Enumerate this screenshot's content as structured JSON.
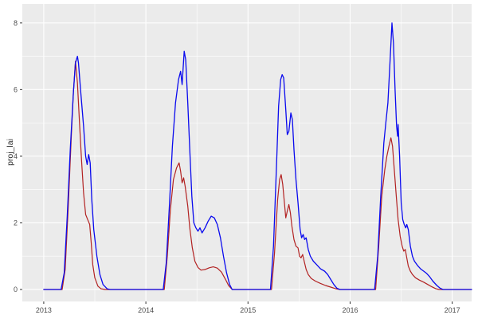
{
  "chart_data": {
    "type": "line",
    "title": "",
    "xlabel": "",
    "ylabel": "proj_lai",
    "legend": "none",
    "grid": true,
    "panel_bg": "#EBEBEB",
    "grid_color": "#FFFFFF",
    "tick_color": "#333333",
    "tick_label_color": "#4D4D4D",
    "xlim": [
      2012.79,
      2017.19
    ],
    "ylim": [
      -0.36,
      8.57
    ],
    "x_ticks": [
      2013,
      2014,
      2015,
      2016,
      2017
    ],
    "x_tick_labels": [
      "2013",
      "2014",
      "2015",
      "2016",
      "2017"
    ],
    "x_minor": [
      2013.5,
      2014.5,
      2015.5,
      2016.5
    ],
    "y_ticks": [
      0,
      2,
      4,
      6,
      8
    ],
    "y_tick_labels": [
      "0",
      "2",
      "4",
      "6",
      "8"
    ],
    "y_minor": [
      1,
      3,
      5,
      7
    ],
    "series": [
      {
        "name": "red-series",
        "color": "#B22222",
        "width": 1.2,
        "points": [
          [
            2013.0,
            0
          ],
          [
            2013.18,
            0
          ],
          [
            2013.21,
            0.6
          ],
          [
            2013.24,
            2.5
          ],
          [
            2013.27,
            4.6
          ],
          [
            2013.29,
            5.9
          ],
          [
            2013.31,
            6.85
          ],
          [
            2013.33,
            6.2
          ],
          [
            2013.35,
            5.0
          ],
          [
            2013.37,
            3.9
          ],
          [
            2013.39,
            2.9
          ],
          [
            2013.41,
            2.25
          ],
          [
            2013.43,
            2.1
          ],
          [
            2013.45,
            1.95
          ],
          [
            2013.465,
            1.4
          ],
          [
            2013.48,
            0.75
          ],
          [
            2013.5,
            0.35
          ],
          [
            2013.53,
            0.1
          ],
          [
            2013.56,
            0.02
          ],
          [
            2013.6,
            0
          ],
          [
            2014.18,
            0
          ],
          [
            2014.21,
            1.0
          ],
          [
            2014.24,
            2.4
          ],
          [
            2014.27,
            3.3
          ],
          [
            2014.3,
            3.65
          ],
          [
            2014.325,
            3.8
          ],
          [
            2014.34,
            3.55
          ],
          [
            2014.355,
            3.2
          ],
          [
            2014.37,
            3.35
          ],
          [
            2014.385,
            3.1
          ],
          [
            2014.41,
            2.5
          ],
          [
            2014.43,
            1.85
          ],
          [
            2014.455,
            1.25
          ],
          [
            2014.48,
            0.85
          ],
          [
            2014.51,
            0.66
          ],
          [
            2014.54,
            0.58
          ],
          [
            2014.58,
            0.6
          ],
          [
            2014.62,
            0.65
          ],
          [
            2014.66,
            0.68
          ],
          [
            2014.7,
            0.64
          ],
          [
            2014.74,
            0.52
          ],
          [
            2014.78,
            0.3
          ],
          [
            2014.81,
            0.12
          ],
          [
            2014.845,
            0
          ],
          [
            2015.23,
            0
          ],
          [
            2015.26,
            1.1
          ],
          [
            2015.29,
            2.7
          ],
          [
            2015.31,
            3.3
          ],
          [
            2015.325,
            3.45
          ],
          [
            2015.34,
            3.15
          ],
          [
            2015.36,
            2.5
          ],
          [
            2015.37,
            2.15
          ],
          [
            2015.385,
            2.35
          ],
          [
            2015.4,
            2.55
          ],
          [
            2015.415,
            2.3
          ],
          [
            2015.43,
            1.9
          ],
          [
            2015.45,
            1.5
          ],
          [
            2015.47,
            1.3
          ],
          [
            2015.49,
            1.25
          ],
          [
            2015.505,
            1.0
          ],
          [
            2015.52,
            0.95
          ],
          [
            2015.535,
            1.05
          ],
          [
            2015.55,
            0.85
          ],
          [
            2015.57,
            0.6
          ],
          [
            2015.59,
            0.45
          ],
          [
            2015.62,
            0.33
          ],
          [
            2015.66,
            0.25
          ],
          [
            2015.71,
            0.18
          ],
          [
            2015.76,
            0.12
          ],
          [
            2015.81,
            0.07
          ],
          [
            2015.86,
            0.02
          ],
          [
            2015.9,
            0
          ],
          [
            2016.25,
            0
          ],
          [
            2016.28,
            1.3
          ],
          [
            2016.31,
            2.8
          ],
          [
            2016.34,
            3.6
          ],
          [
            2016.36,
            4.0
          ],
          [
            2016.38,
            4.3
          ],
          [
            2016.4,
            4.55
          ],
          [
            2016.415,
            4.3
          ],
          [
            2016.43,
            3.7
          ],
          [
            2016.45,
            2.9
          ],
          [
            2016.47,
            2.1
          ],
          [
            2016.49,
            1.6
          ],
          [
            2016.51,
            1.3
          ],
          [
            2016.525,
            1.15
          ],
          [
            2016.54,
            1.2
          ],
          [
            2016.555,
            0.95
          ],
          [
            2016.57,
            0.7
          ],
          [
            2016.59,
            0.55
          ],
          [
            2016.61,
            0.45
          ],
          [
            2016.64,
            0.35
          ],
          [
            2016.68,
            0.28
          ],
          [
            2016.72,
            0.22
          ],
          [
            2016.76,
            0.15
          ],
          [
            2016.8,
            0.08
          ],
          [
            2016.84,
            0.02
          ],
          [
            2016.87,
            0
          ],
          [
            2017.19,
            0
          ]
        ]
      },
      {
        "name": "blue-series",
        "color": "#0A0AEE",
        "width": 1.3,
        "points": [
          [
            2013.0,
            0
          ],
          [
            2013.17,
            0
          ],
          [
            2013.2,
            0.5
          ],
          [
            2013.23,
            2.2
          ],
          [
            2013.26,
            4.2
          ],
          [
            2013.29,
            5.9
          ],
          [
            2013.31,
            6.8
          ],
          [
            2013.33,
            7.0
          ],
          [
            2013.34,
            6.8
          ],
          [
            2013.36,
            6.0
          ],
          [
            2013.39,
            4.9
          ],
          [
            2013.41,
            4.0
          ],
          [
            2013.425,
            3.75
          ],
          [
            2013.44,
            4.05
          ],
          [
            2013.455,
            3.8
          ],
          [
            2013.47,
            2.7
          ],
          [
            2013.49,
            1.8
          ],
          [
            2013.52,
            1.0
          ],
          [
            2013.55,
            0.45
          ],
          [
            2013.58,
            0.15
          ],
          [
            2013.62,
            0.02
          ],
          [
            2013.65,
            0
          ],
          [
            2014.17,
            0
          ],
          [
            2014.2,
            0.8
          ],
          [
            2014.23,
            2.5
          ],
          [
            2014.26,
            4.3
          ],
          [
            2014.29,
            5.6
          ],
          [
            2014.32,
            6.3
          ],
          [
            2014.34,
            6.55
          ],
          [
            2014.355,
            6.15
          ],
          [
            2014.375,
            7.15
          ],
          [
            2014.39,
            6.9
          ],
          [
            2014.41,
            5.6
          ],
          [
            2014.43,
            4.2
          ],
          [
            2014.45,
            2.8
          ],
          [
            2014.47,
            2.0
          ],
          [
            2014.49,
            1.85
          ],
          [
            2014.51,
            1.75
          ],
          [
            2014.53,
            1.85
          ],
          [
            2014.55,
            1.7
          ],
          [
            2014.58,
            1.85
          ],
          [
            2014.61,
            2.05
          ],
          [
            2014.64,
            2.2
          ],
          [
            2014.67,
            2.15
          ],
          [
            2014.7,
            1.95
          ],
          [
            2014.73,
            1.55
          ],
          [
            2014.76,
            1.0
          ],
          [
            2014.79,
            0.5
          ],
          [
            2014.82,
            0.15
          ],
          [
            2014.845,
            0
          ],
          [
            2015.22,
            0
          ],
          [
            2015.25,
            1.3
          ],
          [
            2015.28,
            3.8
          ],
          [
            2015.3,
            5.5
          ],
          [
            2015.32,
            6.3
          ],
          [
            2015.335,
            6.45
          ],
          [
            2015.35,
            6.35
          ],
          [
            2015.37,
            5.4
          ],
          [
            2015.385,
            4.65
          ],
          [
            2015.4,
            4.75
          ],
          [
            2015.42,
            5.3
          ],
          [
            2015.435,
            5.1
          ],
          [
            2015.45,
            4.2
          ],
          [
            2015.47,
            3.3
          ],
          [
            2015.49,
            2.6
          ],
          [
            2015.51,
            1.8
          ],
          [
            2015.525,
            1.55
          ],
          [
            2015.54,
            1.65
          ],
          [
            2015.555,
            1.5
          ],
          [
            2015.57,
            1.55
          ],
          [
            2015.59,
            1.2
          ],
          [
            2015.61,
            1.0
          ],
          [
            2015.64,
            0.85
          ],
          [
            2015.67,
            0.75
          ],
          [
            2015.71,
            0.62
          ],
          [
            2015.75,
            0.55
          ],
          [
            2015.78,
            0.45
          ],
          [
            2015.81,
            0.3
          ],
          [
            2015.84,
            0.15
          ],
          [
            2015.87,
            0.04
          ],
          [
            2015.9,
            0
          ],
          [
            2016.24,
            0
          ],
          [
            2016.27,
            1.0
          ],
          [
            2016.3,
            2.8
          ],
          [
            2016.33,
            4.4
          ],
          [
            2016.35,
            5.0
          ],
          [
            2016.37,
            5.6
          ],
          [
            2016.39,
            6.8
          ],
          [
            2016.41,
            8.0
          ],
          [
            2016.425,
            7.4
          ],
          [
            2016.44,
            6.0
          ],
          [
            2016.455,
            4.9
          ],
          [
            2016.465,
            4.6
          ],
          [
            2016.47,
            4.95
          ],
          [
            2016.485,
            4.0
          ],
          [
            2016.5,
            2.6
          ],
          [
            2016.515,
            2.1
          ],
          [
            2016.53,
            1.95
          ],
          [
            2016.545,
            1.85
          ],
          [
            2016.555,
            1.95
          ],
          [
            2016.57,
            1.8
          ],
          [
            2016.59,
            1.3
          ],
          [
            2016.61,
            1.0
          ],
          [
            2016.63,
            0.85
          ],
          [
            2016.66,
            0.72
          ],
          [
            2016.69,
            0.62
          ],
          [
            2016.72,
            0.55
          ],
          [
            2016.75,
            0.48
          ],
          [
            2016.78,
            0.38
          ],
          [
            2016.81,
            0.25
          ],
          [
            2016.85,
            0.12
          ],
          [
            2016.88,
            0.04
          ],
          [
            2016.91,
            0
          ],
          [
            2017.19,
            0
          ]
        ]
      }
    ]
  }
}
